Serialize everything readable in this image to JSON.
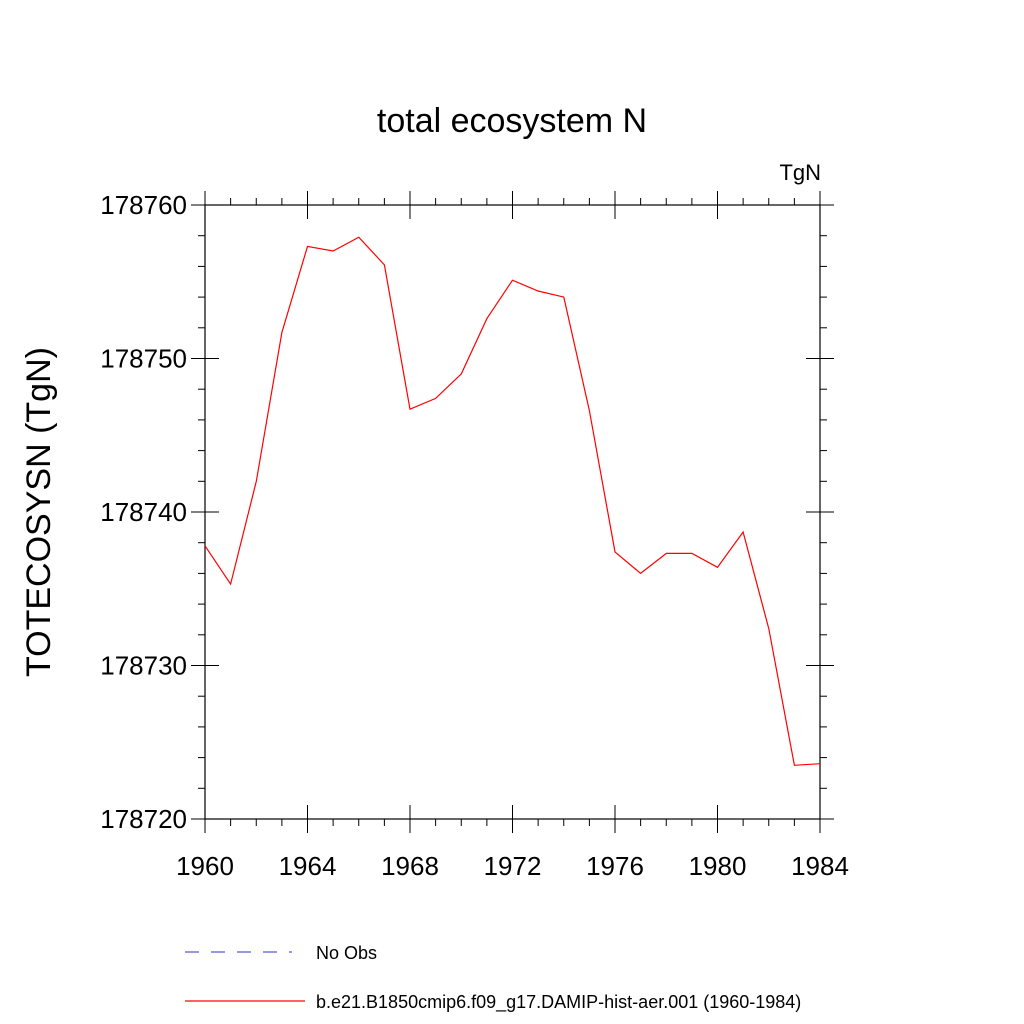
{
  "chart_data": {
    "type": "line",
    "title": "total ecosystem N",
    "units_label": "TgN",
    "ylabel": "TOTECOSYSN  (TgN)",
    "xlabel": "",
    "xlim": [
      1960,
      1984
    ],
    "ylim": [
      178720,
      178760
    ],
    "x_ticks": [
      1960,
      1964,
      1968,
      1972,
      1976,
      1980,
      1984
    ],
    "y_ticks": [
      178720,
      178730,
      178740,
      178750,
      178760
    ],
    "grid": false,
    "series": [
      {
        "name": "No Obs",
        "color": "#5b5bd6",
        "dash": "dashed",
        "x": [],
        "y": []
      },
      {
        "name": "b.e21.B1850cmip6.f09_g17.DAMIP-hist-aer.001 (1960-1984)",
        "color": "#ff0000",
        "dash": "solid",
        "x": [
          1960,
          1961,
          1962,
          1963,
          1964,
          1965,
          1966,
          1967,
          1968,
          1969,
          1970,
          1971,
          1972,
          1973,
          1974,
          1975,
          1976,
          1977,
          1978,
          1979,
          1980,
          1981,
          1982,
          1983,
          1984
        ],
        "y": [
          178737.8,
          178735.3,
          178742.0,
          178751.7,
          178757.3,
          178757.0,
          178757.9,
          178756.1,
          178746.7,
          178747.4,
          178749.0,
          178752.6,
          178755.1,
          178754.4,
          178754.0,
          178746.6,
          178737.4,
          178736.0,
          178737.3,
          178737.3,
          178736.4,
          178738.7,
          178732.4,
          178723.5,
          178723.6
        ]
      }
    ],
    "legend_position": "bottom"
  }
}
